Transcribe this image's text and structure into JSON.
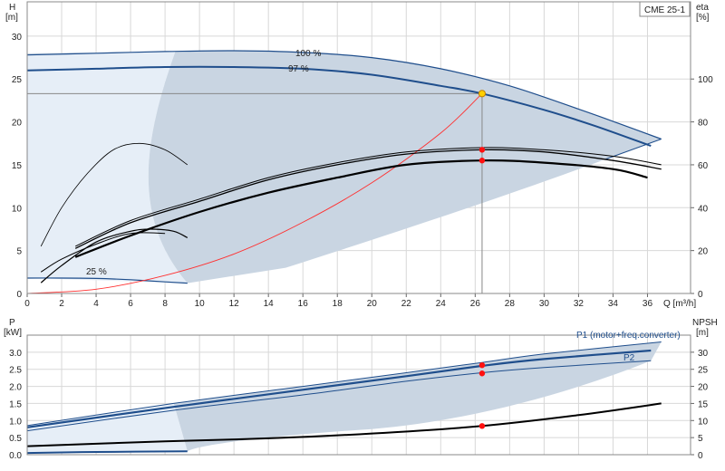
{
  "window_title": "CME 25-1",
  "colors": {
    "envelope_fill": "#c9d5e2",
    "lightzone_fill": "#e6eef7",
    "envelope_line": "#1f4e8c",
    "curve": "#000000",
    "system_curve": "#ff3030",
    "operating_point": "#ff1010",
    "duty_point": "#ffd000"
  },
  "chart_data": [
    {
      "type": "line",
      "name_panel": "pump-head-curve",
      "xlabel": "Q [m³/h]",
      "ylabel_top": "H",
      "ylabel_unit": "[m]",
      "y2label_top": "eta",
      "y2label_unit": "[%]",
      "xlim": [
        0,
        38.5
      ],
      "ylim": [
        0,
        34
      ],
      "y2lim": [
        0,
        136
      ],
      "xticks": [
        0,
        2,
        4,
        6,
        8,
        10,
        12,
        14,
        16,
        18,
        20,
        22,
        24,
        26,
        28,
        30,
        32,
        34,
        36
      ],
      "yticks": [
        0,
        5,
        10,
        15,
        20,
        25,
        30
      ],
      "y2ticks": [
        0,
        20,
        40,
        60,
        80,
        100
      ],
      "grid": true,
      "curve_labels": [
        "100 %",
        "97 %",
        "25 %"
      ],
      "series": [
        {
          "name": "100 %",
          "role": "envelope-max",
          "x": [
            0,
            4,
            8,
            12,
            16,
            20,
            24,
            28,
            32,
            34.5,
            36.8
          ],
          "y": [
            27.8,
            28.0,
            28.2,
            28.3,
            28.1,
            27.5,
            26.2,
            24.2,
            21.5,
            19.7,
            18.0
          ]
        },
        {
          "name": "97 %",
          "role": "speed-curve",
          "x": [
            0,
            4,
            8,
            12,
            16,
            20,
            24,
            26.4,
            30,
            33,
            36.2
          ],
          "y": [
            26.0,
            26.2,
            26.4,
            26.4,
            26.2,
            25.5,
            24.2,
            23.3,
            21.4,
            19.5,
            17.2
          ]
        },
        {
          "name": "25 %",
          "role": "envelope-min",
          "x": [
            0,
            2,
            4,
            6,
            8,
            9.3
          ],
          "y": [
            1.8,
            1.8,
            1.75,
            1.6,
            1.35,
            1.2
          ]
        },
        {
          "name": "",
          "role": "efficiency-upper-a",
          "x": [
            2.8,
            6,
            10,
            14,
            18,
            22,
            26.4,
            30,
            34,
            36.8
          ],
          "y2": [
            22,
            34,
            44,
            54,
            61,
            66,
            68,
            67,
            64,
            60
          ]
        },
        {
          "name": "",
          "role": "efficiency-upper-b",
          "x": [
            2.8,
            6,
            10,
            14,
            18,
            22,
            26.4,
            30,
            34,
            36.8
          ],
          "y2": [
            21,
            33,
            43,
            53,
            60,
            65,
            67,
            66,
            62,
            58
          ]
        },
        {
          "name": "",
          "role": "efficiency-main",
          "x": [
            2.8,
            6,
            10,
            14,
            18,
            22,
            26.4,
            30,
            34,
            36
          ],
          "y2": [
            17,
            27,
            38,
            47,
            54,
            60,
            62,
            61,
            58,
            54
          ]
        },
        {
          "name": "",
          "role": "efficiency-min-speed",
          "x": [
            0.8,
            2,
            4,
            6,
            7.2,
            8.5,
            9.3
          ],
          "y2": [
            5,
            13,
            24,
            29,
            30,
            29,
            26
          ]
        },
        {
          "name": "",
          "role": "efficiency-min-speed-low",
          "x": [
            0.8,
            2,
            4,
            6,
            8
          ],
          "y2": [
            10,
            16,
            23,
            28,
            28
          ]
        },
        {
          "name": "",
          "role": "efficiency-partial",
          "x": [
            0.8,
            2,
            3.5,
            5,
            6.5,
            8,
            9.3
          ],
          "y2": [
            22,
            40,
            56,
            67,
            70,
            67,
            60
          ]
        },
        {
          "name": "",
          "role": "system-curve",
          "x": [
            0,
            4,
            8,
            12,
            16,
            20,
            24,
            26.4
          ],
          "y": [
            0,
            0.5,
            2.1,
            4.6,
            8.3,
            12.9,
            18.7,
            23.3
          ]
        }
      ],
      "duty_point": {
        "x": 26.4,
        "y": 23.3
      },
      "operating_points": [
        {
          "x": 26.4,
          "y2": 67
        },
        {
          "x": 26.4,
          "y2": 62
        }
      ]
    },
    {
      "type": "line",
      "name_panel": "power-npsh-curve",
      "ylabel_top": "P",
      "ylabel_unit": "[kW]",
      "y2label_top": "NPSH",
      "y2label_unit": "[m]",
      "xlim": [
        0,
        38.5
      ],
      "ylim": [
        0,
        3.5
      ],
      "y2lim": [
        0,
        35
      ],
      "yticks": [
        "0.0",
        "0.5",
        "1.0",
        "1.5",
        "2.0",
        "2.5",
        "3.0"
      ],
      "y2ticks": [
        0,
        5,
        10,
        15,
        20,
        25,
        30
      ],
      "grid": true,
      "series": [
        {
          "name": "P1 (motor+freq.converter)",
          "x": [
            0,
            8.5,
            16,
            22,
            26.4,
            30,
            36.8
          ],
          "y": [
            0.85,
            1.5,
            2.0,
            2.4,
            2.7,
            2.95,
            3.3
          ]
        },
        {
          "name": "",
          "role": "p1-97",
          "x": [
            0,
            8.5,
            16,
            22,
            26.4,
            30,
            36.2
          ],
          "y": [
            0.8,
            1.4,
            1.9,
            2.3,
            2.6,
            2.8,
            3.05
          ]
        },
        {
          "name": "P2",
          "x": [
            0,
            8.5,
            16,
            22,
            26.4,
            30,
            36.2
          ],
          "y": [
            0.7,
            1.3,
            1.75,
            2.15,
            2.4,
            2.55,
            2.75
          ]
        },
        {
          "name": "",
          "role": "min-speed-power",
          "x": [
            0,
            4,
            9.3
          ],
          "y": [
            0.05,
            0.08,
            0.1
          ]
        },
        {
          "name": "",
          "role": "NPSH",
          "x": [
            0,
            8,
            14,
            20,
            26.4,
            32,
            36.8
          ],
          "y2": [
            2.5,
            3.9,
            4.8,
            6.2,
            8.4,
            11.6,
            15.0
          ]
        }
      ],
      "operating_points": [
        {
          "x": 26.4,
          "y": 2.62
        },
        {
          "x": 26.4,
          "y": 2.38
        },
        {
          "x": 26.4,
          "y2": 8.4
        }
      ]
    }
  ]
}
